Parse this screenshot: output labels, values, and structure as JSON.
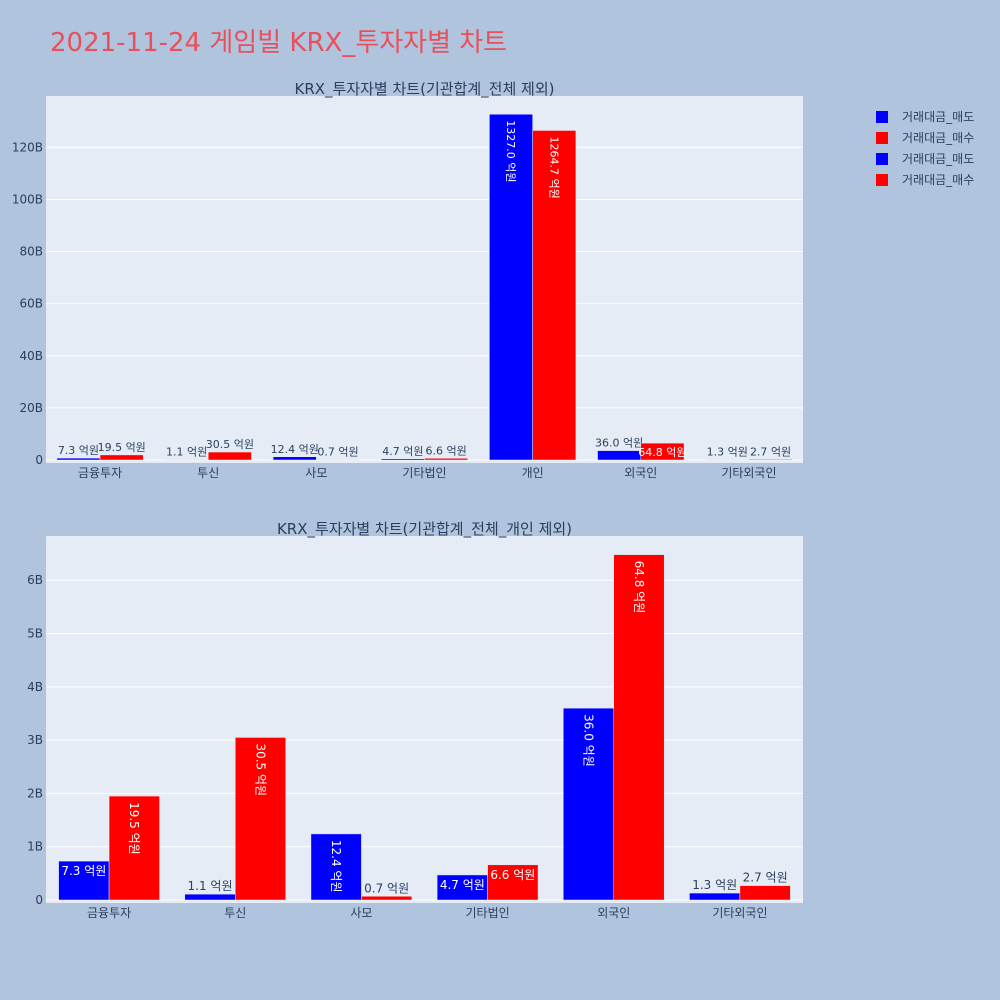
{
  "page_title": "2021-11-24 게임빌 KRX_투자자별 차트",
  "legend": [
    {
      "label": "거래대금_매도",
      "color": "#0000ff"
    },
    {
      "label": "거래대금_매수",
      "color": "#ff0000"
    },
    {
      "label": "거래대금_매도",
      "color": "#0000ff"
    },
    {
      "label": "거래대금_매수",
      "color": "#ff0000"
    }
  ],
  "chart_data": [
    {
      "type": "bar",
      "title": "KRX_투자자별 차트(기관합계_전체 제외)",
      "categories": [
        "금융투자",
        "투신",
        "사모",
        "기타법인",
        "개인",
        "외국인",
        "기타외국인"
      ],
      "series": [
        {
          "name": "거래대금_매도",
          "color": "#0000ff",
          "values": [
            0.73,
            0.11,
            1.24,
            0.47,
            132.7,
            3.6,
            0.13
          ],
          "labels": [
            "7.3 억원",
            "1.1 억원",
            "12.4 억원",
            "4.7 억원",
            "1327.0 억원",
            "36.0 억원",
            "1.3 억원"
          ]
        },
        {
          "name": "거래대금_매수",
          "color": "#ff0000",
          "values": [
            1.95,
            3.05,
            0.07,
            0.66,
            126.47,
            6.48,
            0.27
          ],
          "labels": [
            "19.5 억원",
            "30.5 억원",
            "0.7 억원",
            "6.6 억원",
            "1264.7 억원",
            "64.8 억원",
            "2.7 억원"
          ]
        }
      ],
      "yticks": [
        0,
        20,
        40,
        60,
        80,
        100,
        120
      ],
      "ytick_labels": [
        "0",
        "20B",
        "40B",
        "60B",
        "80B",
        "100B",
        "120B"
      ],
      "ylim": [
        0,
        139.7
      ],
      "background": "#e5ecf6"
    },
    {
      "type": "bar",
      "title": "KRX_투자자별 차트(기관합계_전체_개인 제외)",
      "categories": [
        "금융투자",
        "투신",
        "사모",
        "기타법인",
        "외국인",
        "기타외국인"
      ],
      "series": [
        {
          "name": "거래대금_매도",
          "color": "#0000ff",
          "values": [
            0.73,
            0.11,
            1.24,
            0.47,
            3.6,
            0.13
          ],
          "labels": [
            "7.3 억원",
            "1.1 억원",
            "12.4 억원",
            "4.7 억원",
            "36.0 억원",
            "1.3 억원"
          ]
        },
        {
          "name": "거래대금_매수",
          "color": "#ff0000",
          "values": [
            1.95,
            3.05,
            0.07,
            0.66,
            6.48,
            0.27
          ],
          "labels": [
            "19.5 억원",
            "30.5 억원",
            "0.7 억원",
            "6.6 억원",
            "64.8 억원",
            "2.7 억원"
          ]
        }
      ],
      "yticks": [
        0,
        1,
        2,
        3,
        4,
        5,
        6
      ],
      "ytick_labels": [
        "0",
        "1B",
        "2B",
        "3B",
        "4B",
        "5B",
        "6B"
      ],
      "ylim": [
        0,
        6.83
      ],
      "background": "#e5ecf6"
    }
  ]
}
